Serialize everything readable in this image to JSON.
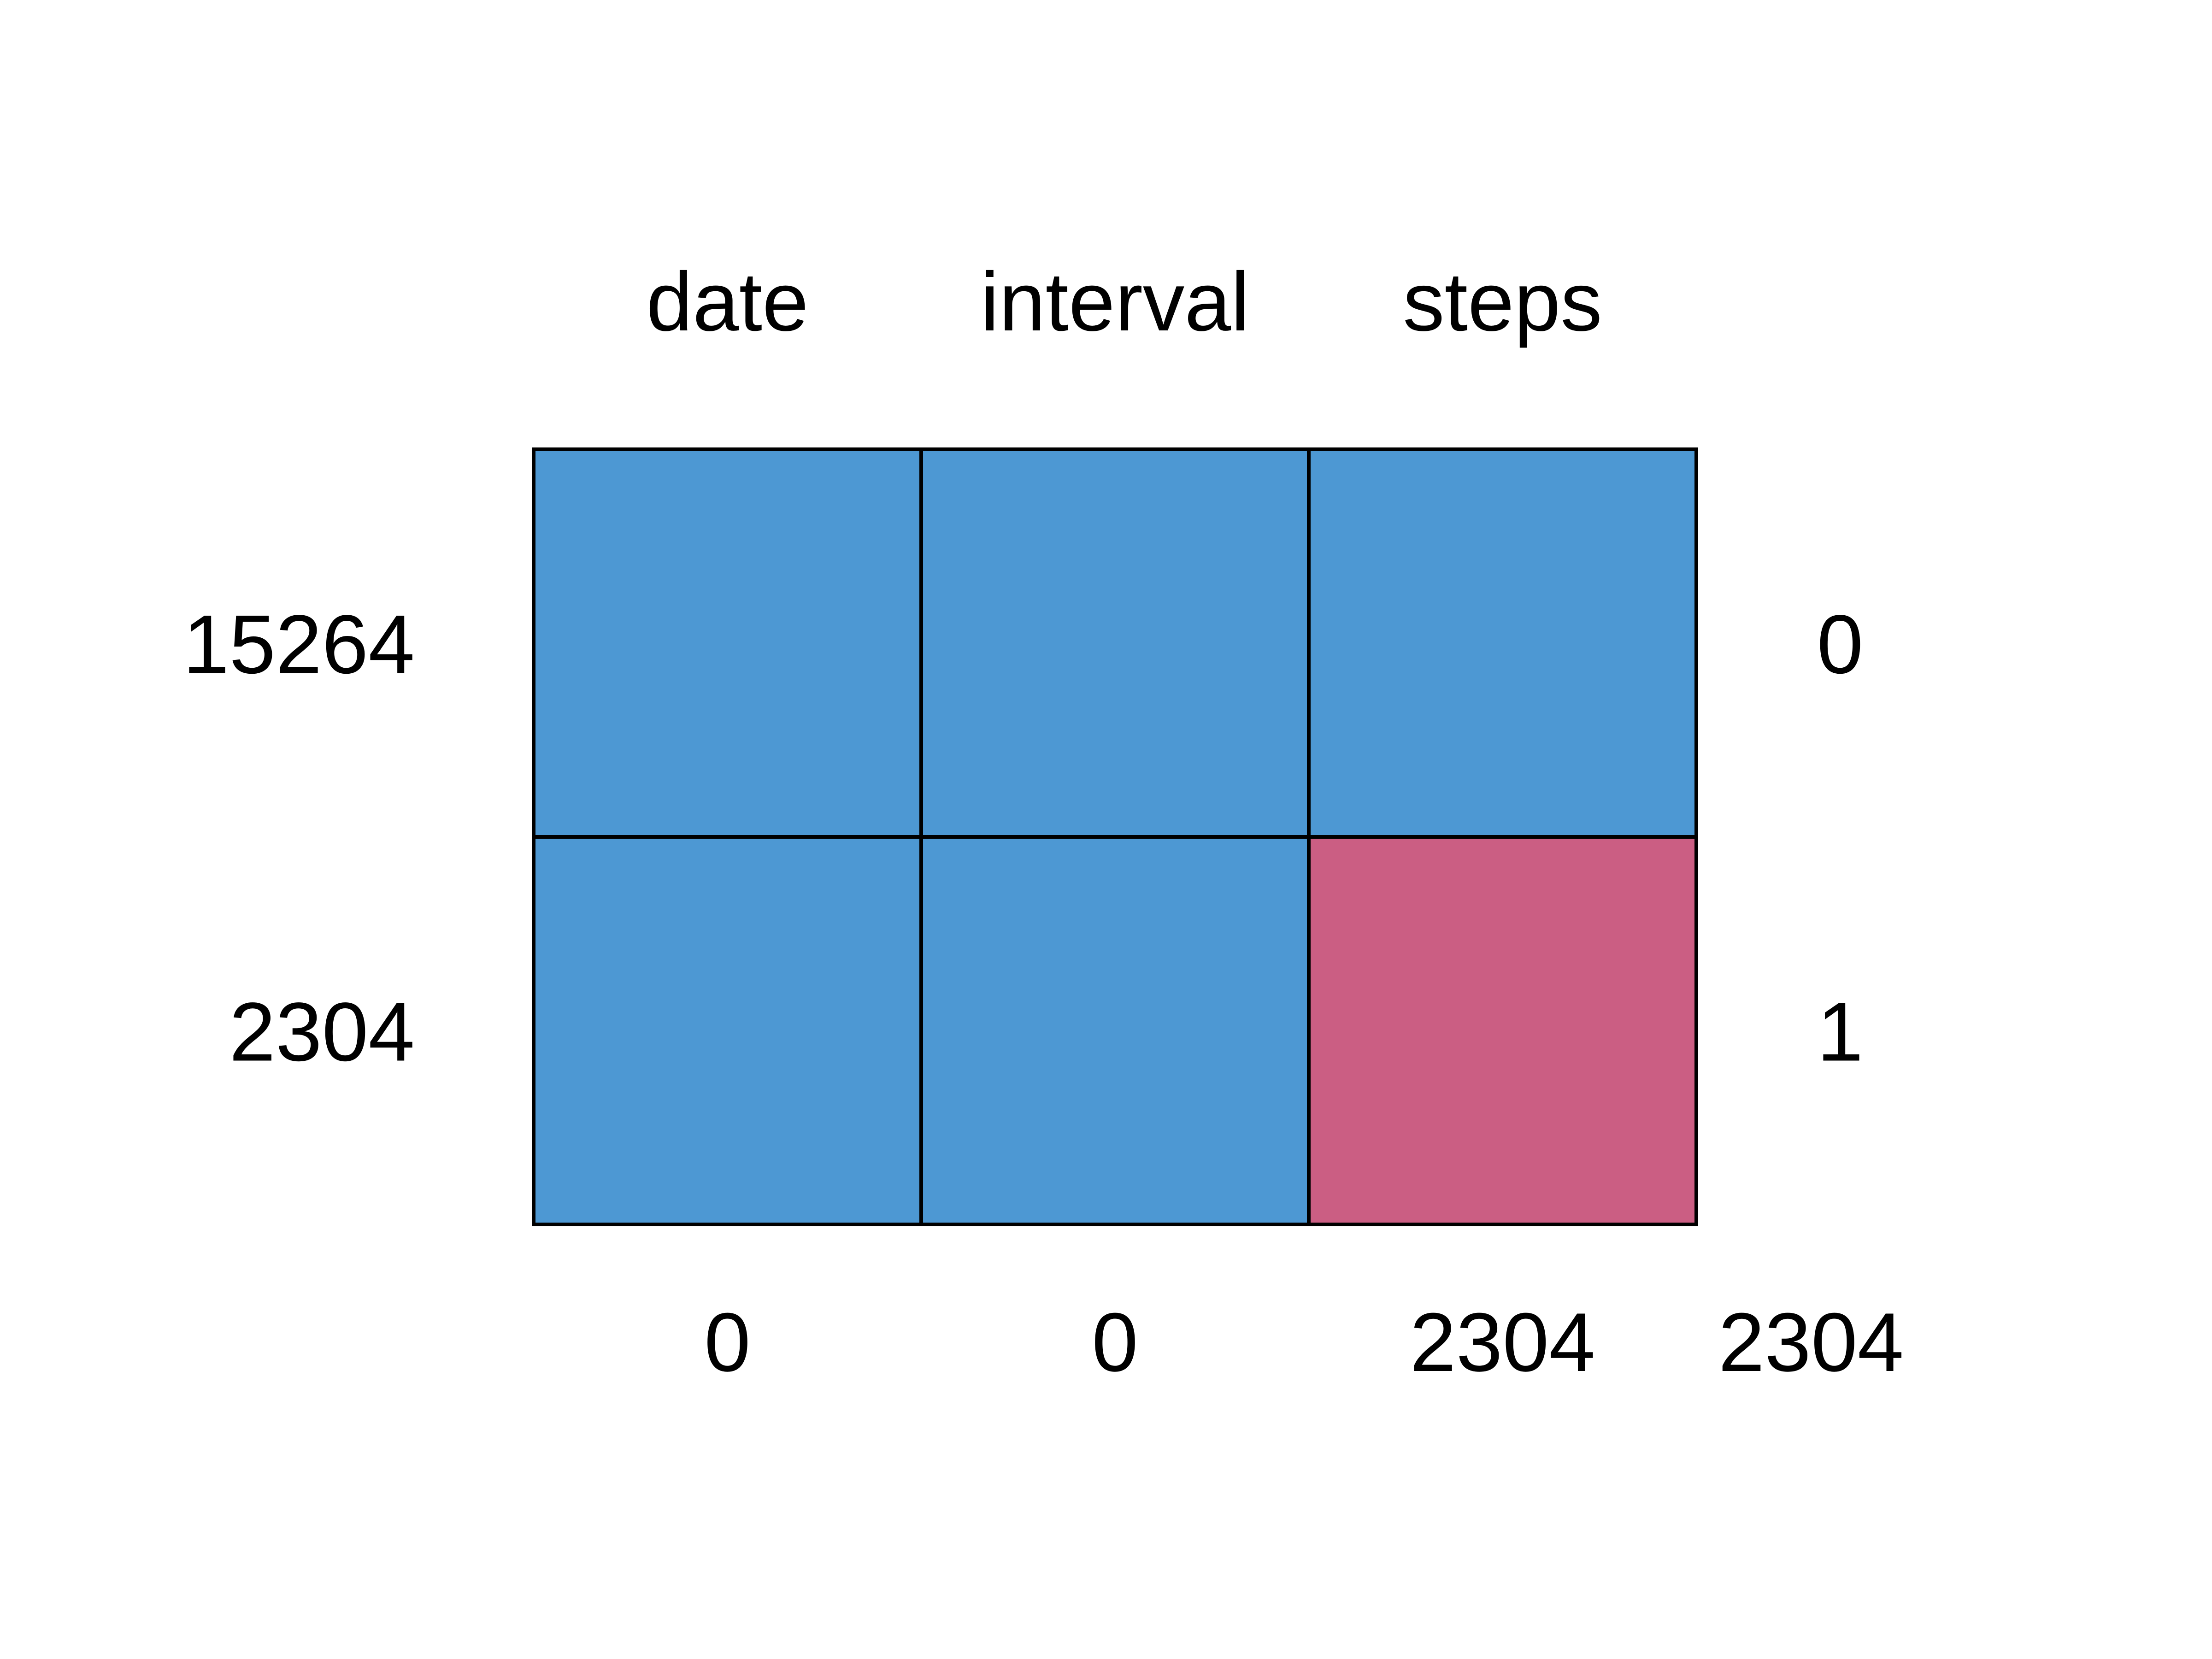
{
  "chart_data": {
    "type": "table",
    "columns": [
      "date",
      "interval",
      "steps"
    ],
    "rows": [
      {
        "count": "15264",
        "missing": [
          0,
          0,
          0
        ],
        "missing_total": "0"
      },
      {
        "count": "2304",
        "missing": [
          0,
          0,
          1
        ],
        "missing_total": "1"
      }
    ],
    "column_missing_counts": [
      "0",
      "0",
      "2304"
    ],
    "total_missing": "2304",
    "colors": {
      "observed": "#4D98D3",
      "missing": "#CB5E83",
      "border": "#000000"
    }
  }
}
